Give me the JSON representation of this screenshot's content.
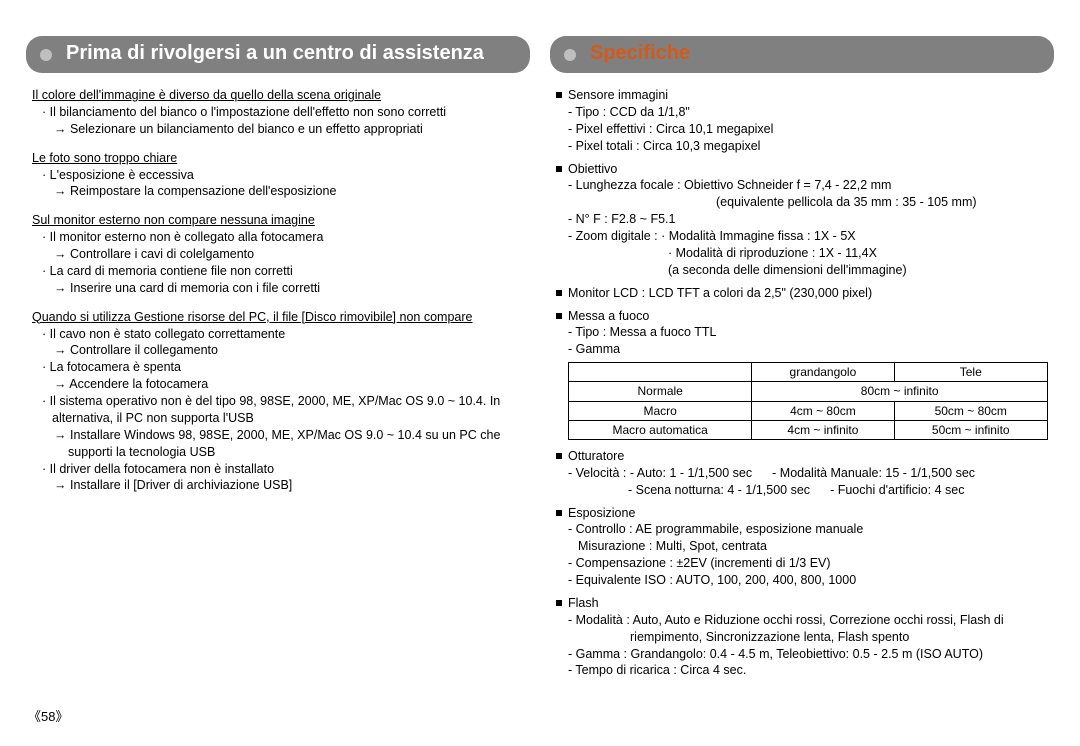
{
  "page_number": "《58》",
  "left": {
    "tab_title": "Prima di rivolgersi a un centro di assistenza",
    "issues": [
      {
        "title": "Il colore dell'immagine è diverso da quello della scena originale",
        "lines": [
          "· Il bilanciamento del bianco o l'impostazione dell'effetto non sono corretti",
          "→ Selezionare un bilanciamento del bianco e un effetto appropriati"
        ]
      },
      {
        "title": "Le foto sono troppo chiare",
        "lines": [
          "· L'esposizione è eccessiva",
          "→ Reimpostare la compensazione dell'esposizione"
        ]
      },
      {
        "title": "Sul monitor esterno non compare nessuna imagine",
        "lines": [
          "· Il monitor esterno non è collegato alla fotocamera",
          "→ Controllare i cavi di colelgamento",
          "· La card di memoria contiene file non corretti",
          "→ Inserire una card di memoria con i file corretti"
        ]
      },
      {
        "title": "Quando si utilizza Gestione risorse del PC, il file [Disco rimovibile] non compare",
        "lines": [
          "· Il cavo non è stato collegato correttamente",
          "→ Controllare il collegamento",
          "· La fotocamera è spenta",
          "→ Accendere la fotocamera",
          "· Il sistema operativo non è del tipo 98, 98SE, 2000, ME, XP/Mac OS 9.0 ~ 10.4. In alternativa, il PC non supporta l'USB",
          "→ Installare Windows 98, 98SE, 2000, ME, XP/Mac OS 9.0 ~ 10.4 su un PC che supporti la tecnologia USB",
          "· Il driver della fotocamera non è installato",
          "→ Installare il [Driver di archiviazione USB]"
        ]
      }
    ]
  },
  "right": {
    "tab_title": "Specifiche",
    "sensor": {
      "heading": "Sensore immagini",
      "type": "- Tipo : CCD da 1/1,8\"",
      "effective": "- Pixel effettivi : Circa 10,1 megapixel",
      "total": "- Pixel totali : Circa 10,3 megapixel"
    },
    "lens": {
      "heading": "Obiettivo",
      "focal": "- Lunghezza focale : Obiettivo Schneider f = 7,4 - 22,2 mm",
      "focal_eq": "(equivalente pellicola da 35 mm : 35 - 105 mm)",
      "fno": "- N° F : F2.8 ~ F5.1",
      "zoom": "- Zoom digitale : · Modalità Immagine fissa : 1X - 5X",
      "zoom2": "· Modalità di riproduzione : 1X - 11,4X",
      "zoom3": "(a seconda delle dimensioni dell'immagine)"
    },
    "lcd": {
      "heading": "Monitor LCD : LCD TFT a colori da 2,5\" (230,000 pixel)"
    },
    "focus": {
      "heading": "Messa a fuoco",
      "type": "- Tipo : Messa a fuoco TTL",
      "range": "- Gamma",
      "table": {
        "headers": [
          "",
          "grandangolo",
          "Tele"
        ],
        "rows": [
          [
            "Normale",
            "80cm ~ infinito",
            ""
          ],
          [
            "Macro",
            "4cm ~ 80cm",
            "50cm ~ 80cm"
          ],
          [
            "Macro automatica",
            "4cm ~ infinito",
            "50cm ~ infinito"
          ]
        ],
        "normale_span": "80cm ~ infinito"
      }
    },
    "shutter": {
      "heading": "Otturatore",
      "l1a": "- Velocità :  - Auto: 1 - 1/1,500 sec",
      "l1b": "- Modalità Manuale: 15 - 1/1,500 sec",
      "l2a": "- Scena notturna: 4 - 1/1,500 sec",
      "l2b": "- Fuochi d'artificio: 4 sec"
    },
    "exposure": {
      "heading": "Esposizione",
      "l1": "- Controllo : AE programmabile, esposizione manuale",
      "l2": "Misurazione : Multi, Spot, centrata",
      "l3": "- Compensazione : ±2EV (incrementi di 1/3 EV)",
      "l4": "- Equivalente ISO : AUTO, 100, 200, 400, 800, 1000"
    },
    "flash": {
      "heading": "Flash",
      "l1": "- Modalità : Auto, Auto e Riduzione occhi rossi, Correzione occhi rossi, Flash di riempimento, Sincronizzazione lenta, Flash spento",
      "l2": "- Gamma : Grandangolo: 0.4 - 4.5 m, Teleobiettivo: 0.5 - 2.5 m (ISO AUTO)",
      "l3": "- Tempo di ricarica : Circa 4 sec."
    }
  }
}
